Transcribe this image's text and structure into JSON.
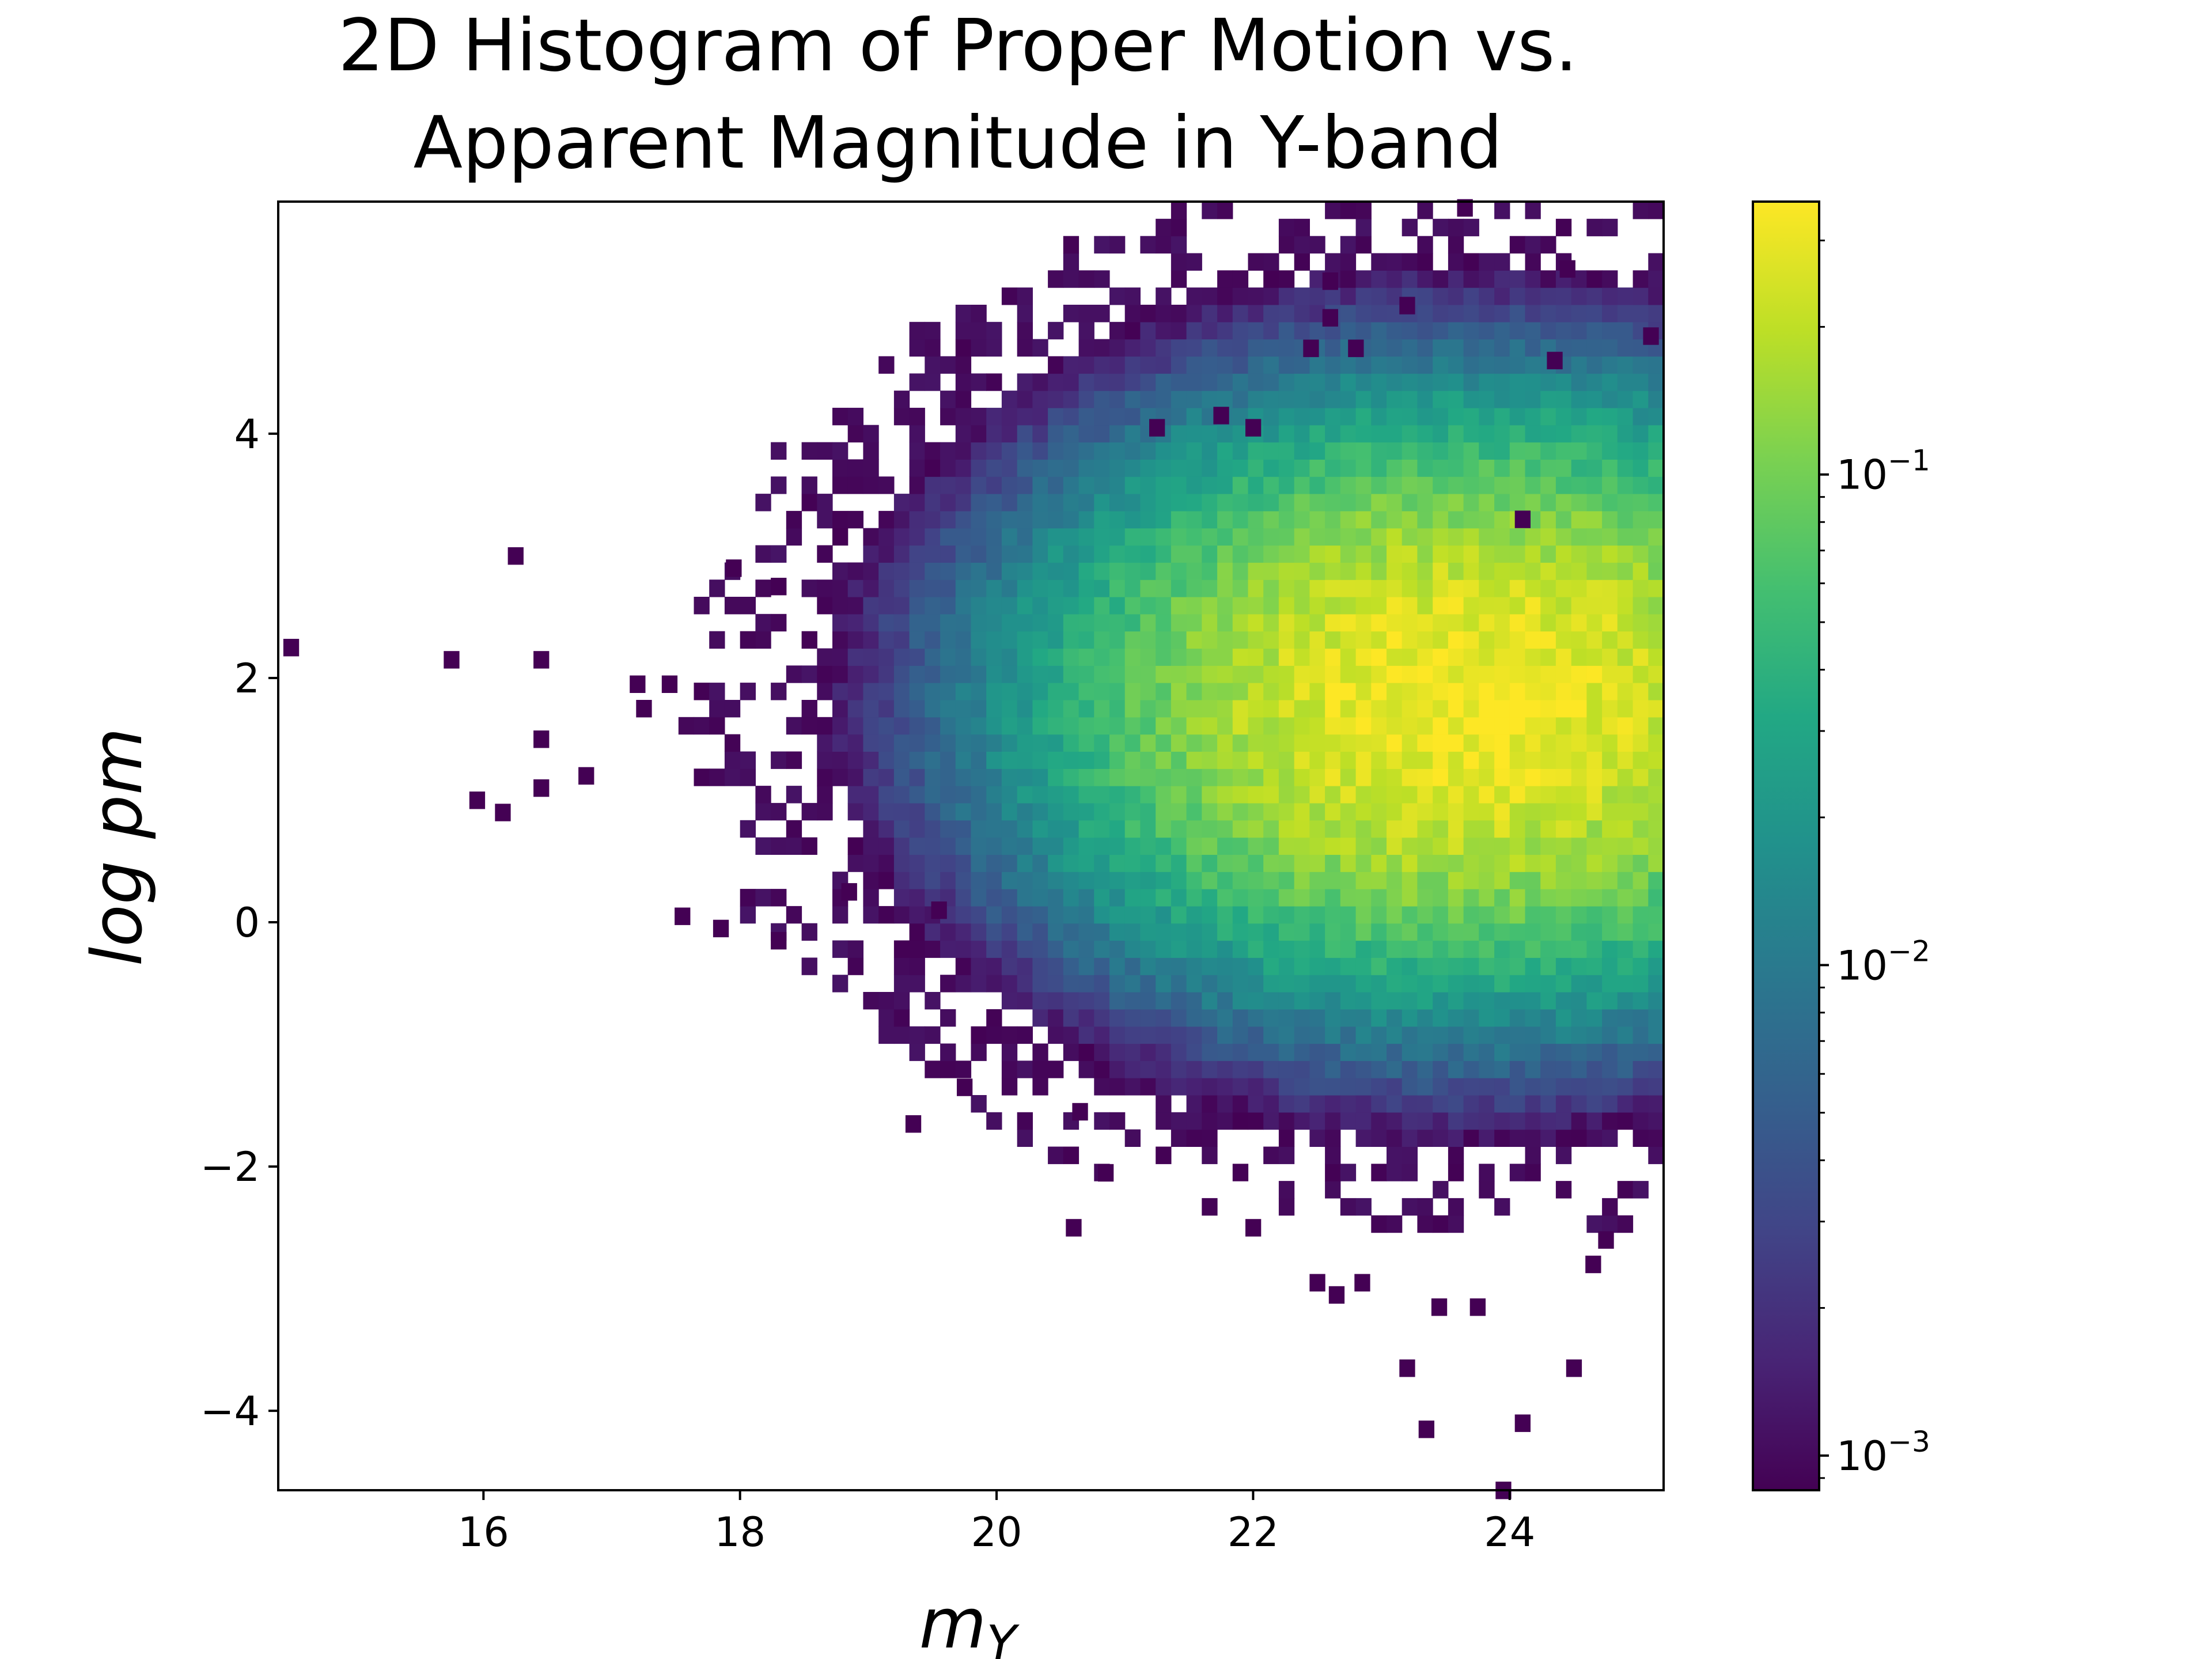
{
  "chart_data": {
    "type": "heatmap",
    "title_lines": [
      "2D Histogram of Proper Motion vs.",
      "Apparent Magnitude in Y-band"
    ],
    "xlabel": "m_Y",
    "xlabel_main": "m",
    "xlabel_sub": "Y",
    "ylabel": "log pm",
    "xlim": [
      14.4,
      25.2
    ],
    "ylim": [
      -4.65,
      5.9
    ],
    "xticks": [
      16,
      18,
      20,
      22,
      24
    ],
    "yticks": [
      -4,
      -2,
      0,
      2,
      4
    ],
    "xtick_labels": [
      "16",
      "18",
      "20",
      "22",
      "24"
    ],
    "ytick_labels": [
      "−4",
      "−2",
      "0",
      "2",
      "4"
    ],
    "colormap": "viridis",
    "color_scale": "log",
    "colorbar": {
      "range": [
        0.00085,
        0.36
      ],
      "major_ticks": [
        0.001,
        0.01,
        0.1
      ],
      "tick_labels": [
        {
          "base": "10",
          "exp": "−3"
        },
        {
          "base": "10",
          "exp": "−2"
        },
        {
          "base": "10",
          "exp": "−1"
        }
      ]
    },
    "density_model": {
      "peak_x": 23.6,
      "peak_y": 1.8,
      "peak_density": 0.34,
      "sigma_x_faint": 1.7,
      "sigma_x_bright": 1.45,
      "sigma_y": 1.05,
      "threshold": 0.00085
    },
    "outliers": [
      [
        14.5,
        2.25
      ],
      [
        15.75,
        2.15
      ],
      [
        16.25,
        3.0
      ],
      [
        16.45,
        2.15
      ],
      [
        16.45,
        1.5
      ],
      [
        16.45,
        1.1
      ],
      [
        16.8,
        1.2
      ],
      [
        15.95,
        1.0
      ],
      [
        16.15,
        0.9
      ],
      [
        17.2,
        1.95
      ],
      [
        17.25,
        1.75
      ],
      [
        17.45,
        1.95
      ],
      [
        17.55,
        0.05
      ],
      [
        17.85,
        -0.05
      ],
      [
        17.95,
        2.9
      ],
      [
        18.3,
        2.75
      ],
      [
        18.3,
        -0.15
      ],
      [
        19.35,
        -1.65
      ],
      [
        19.75,
        -1.35
      ],
      [
        20.6,
        -2.5
      ],
      [
        20.85,
        -2.05
      ],
      [
        20.65,
        -1.55
      ],
      [
        22.0,
        -2.5
      ],
      [
        22.5,
        -2.95
      ],
      [
        22.65,
        -3.05
      ],
      [
        22.85,
        -2.95
      ],
      [
        23.2,
        -3.65
      ],
      [
        23.35,
        -4.15
      ],
      [
        23.45,
        -3.15
      ],
      [
        23.75,
        -3.15
      ],
      [
        23.95,
        -4.65
      ],
      [
        24.1,
        -4.1
      ],
      [
        24.5,
        -3.65
      ],
      [
        24.65,
        -2.8
      ],
      [
        24.75,
        -2.6
      ],
      [
        23.65,
        5.85
      ],
      [
        24.45,
        5.35
      ],
      [
        22.6,
        5.25
      ],
      [
        23.2,
        5.05
      ],
      [
        22.6,
        4.95
      ],
      [
        25.1,
        4.8
      ],
      [
        22.45,
        4.7
      ],
      [
        22.8,
        4.7
      ],
      [
        24.35,
        4.6
      ],
      [
        24.1,
        3.3
      ],
      [
        21.25,
        4.05
      ],
      [
        21.75,
        4.15
      ],
      [
        22.0,
        4.05
      ],
      [
        19.55,
        0.1
      ],
      [
        18.85,
        0.25
      ]
    ]
  }
}
